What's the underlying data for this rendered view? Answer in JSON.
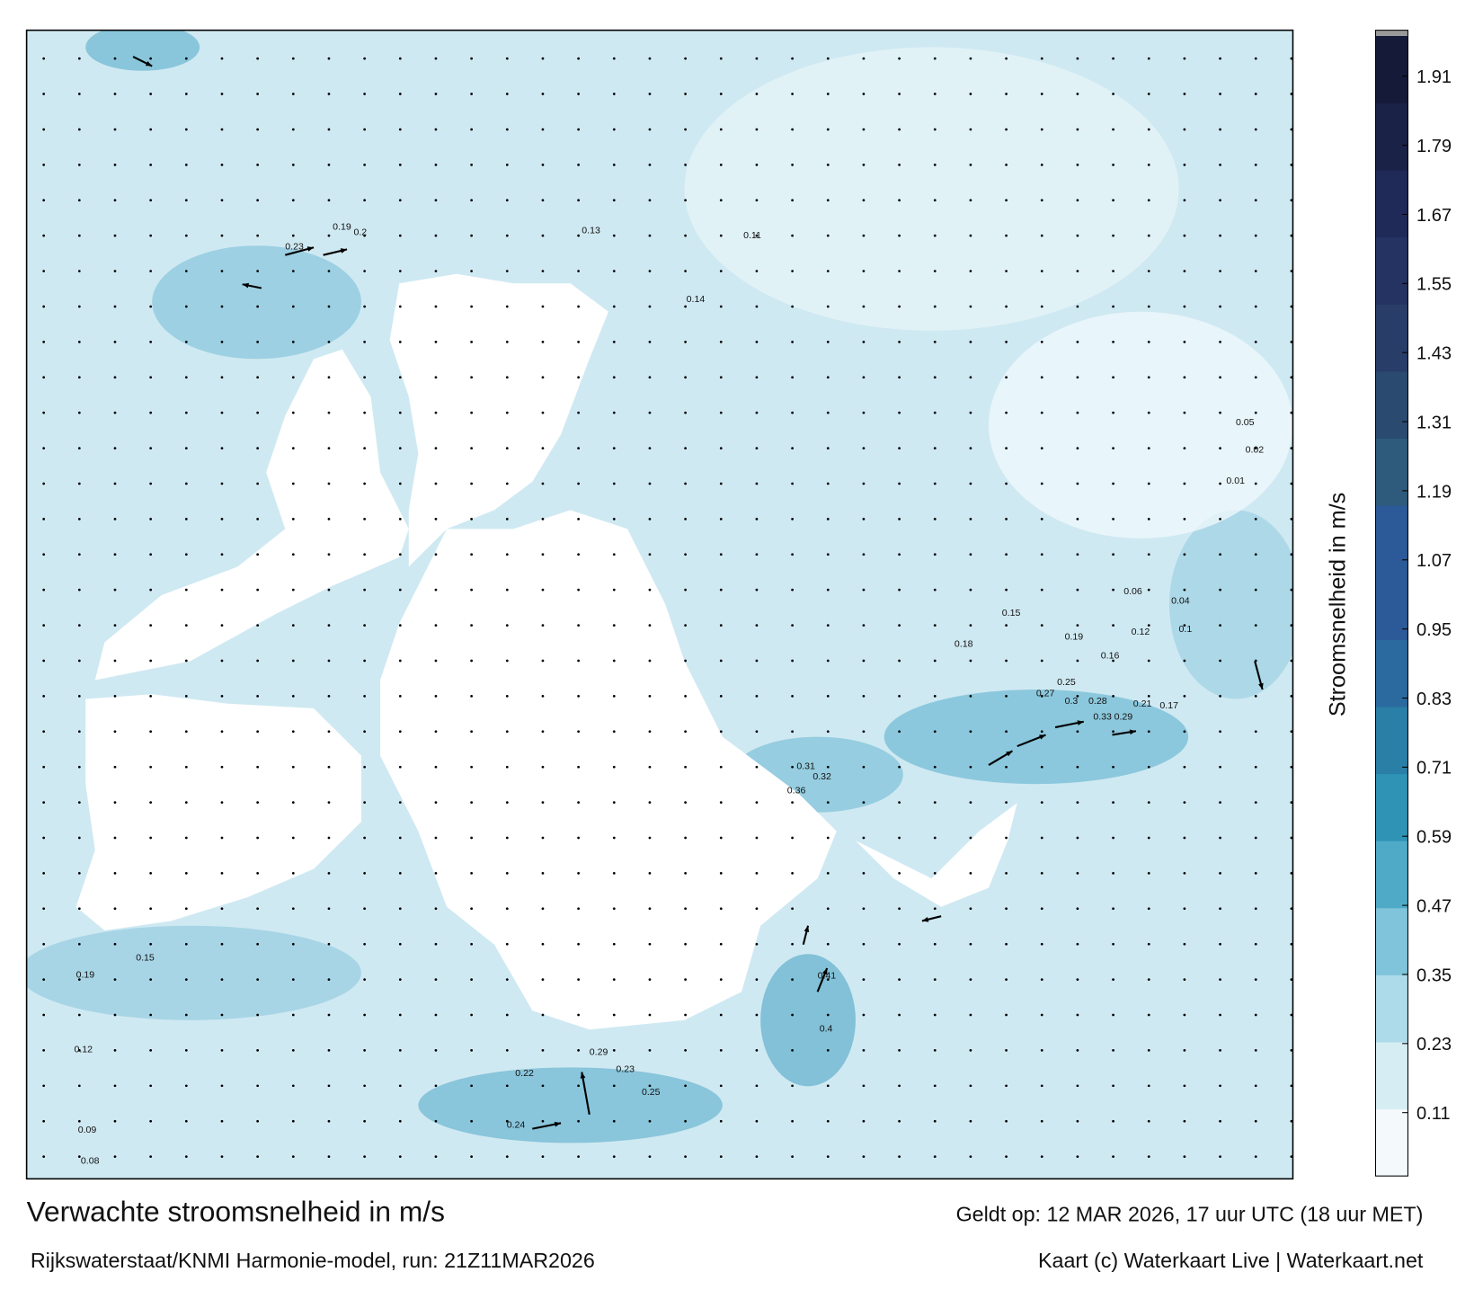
{
  "title": "Verwachte stroomsnelheid in m/s",
  "valid_time": "Geldt op: 12 MAR 2026, 17 uur UTC (18 uur MET)",
  "source": "Rijkswaterstaat/KNMI Harmonie-model, run: 21Z11MAR2026",
  "credit": "Kaart (c) Waterkaart Live | Waterkaart.net",
  "map_labels": [
    "0.3",
    "0.33",
    "0.29",
    "0.28",
    "0.25",
    "0.27",
    "0.21",
    "0.17",
    "0.36",
    "0.31",
    "0.32",
    "0.41",
    "0.4",
    "0.29",
    "0.23",
    "0.25",
    "0.22",
    "0.24",
    "0.15",
    "0.19",
    "0.12",
    "0.09",
    "0.08",
    "0.2",
    "0.19",
    "0.23",
    "0.13",
    "0.11",
    "0.14",
    "0.18",
    "0.19",
    "0.16",
    "0.15",
    "0.06",
    "0.04",
    "0.1",
    "0.12",
    "0.05",
    "0.02",
    "0.01"
  ],
  "colorbar": {
    "label": "Stroomsnelheid in m/s",
    "lim": [
      0,
      1.98
    ],
    "ticks": [
      0.11,
      0.23,
      0.35,
      0.47,
      0.59,
      0.71,
      0.83,
      0.95,
      1.07,
      1.19,
      1.31,
      1.43,
      1.55,
      1.67,
      1.79,
      1.91
    ],
    "colors": [
      "#f4fafc",
      "#d6edf4",
      "#aedbe9",
      "#7fc4da",
      "#4faac7",
      "#2f93b5",
      "#2a7fa6",
      "#2b6a9e",
      "#2c5a98",
      "#2c5a98",
      "#2e5b7c",
      "#2a4a70",
      "#283d68",
      "#253362",
      "#202a58",
      "#1b2248",
      "#141a38"
    ]
  }
}
